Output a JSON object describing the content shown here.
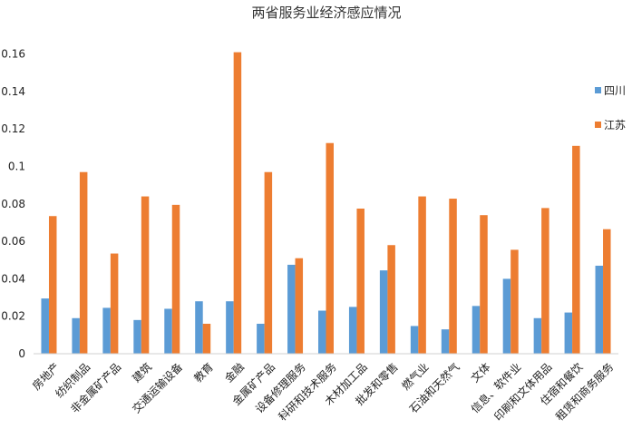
{
  "chart_data": {
    "type": "bar",
    "title": "两省服务业经济感应情况",
    "xlabel": "",
    "ylabel": "",
    "ylim": [
      0,
      0.17
    ],
    "yticks": [
      "0",
      "0.02",
      "0.04",
      "0.06",
      "0.08",
      "0.1",
      "0.12",
      "0.14",
      "0.16"
    ],
    "ytick_values": [
      0,
      0.02,
      0.04,
      0.06,
      0.08,
      0.1,
      0.12,
      0.14,
      0.16
    ],
    "grid": false,
    "legend_position": "right",
    "categories": [
      "房地产",
      "纺织制品",
      "非金属矿产品",
      "建筑",
      "交通运输设备",
      "教育",
      "金融",
      "金属矿产品",
      "设备修理服务",
      "科研和技术服务",
      "木材加工品",
      "批发和零售",
      "燃气业",
      "石油和天然气",
      "文体",
      "信息、软件业",
      "印刷和文体用品",
      "住宿和餐饮",
      "租赁和商务服务"
    ],
    "series": [
      {
        "name": "四川",
        "color": "#5b9bd5",
        "values": [
          0.0295,
          0.019,
          0.0245,
          0.018,
          0.024,
          0.028,
          0.028,
          0.016,
          0.0475,
          0.023,
          0.025,
          0.0445,
          0.0148,
          0.013,
          0.0255,
          0.04,
          0.019,
          0.022,
          0.047
        ]
      },
      {
        "name": "江苏",
        "color": "#ed7d31",
        "values": [
          0.0735,
          0.097,
          0.0535,
          0.084,
          0.0795,
          0.016,
          0.161,
          0.097,
          0.051,
          0.1125,
          0.0775,
          0.058,
          0.084,
          0.0828,
          0.074,
          0.0555,
          0.0778,
          0.111,
          0.0665
        ]
      }
    ]
  }
}
